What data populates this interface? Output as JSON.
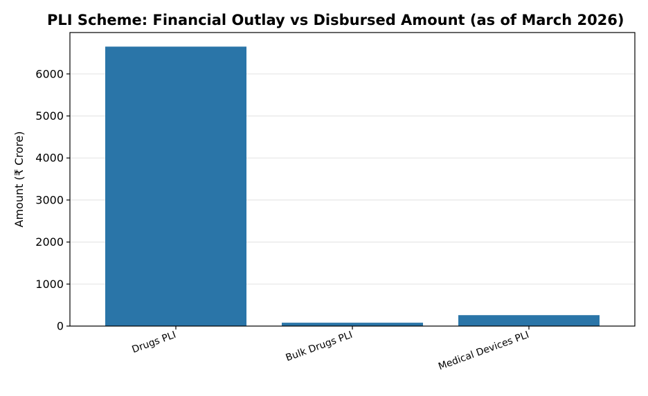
{
  "chart_data": {
    "type": "bar",
    "title": "PLI Scheme: Financial Outlay vs Disbursed Amount (as of March 2026)",
    "xlabel": "",
    "ylabel": "Amount (₹ Crore)",
    "categories": [
      "Drugs PLI",
      "Bulk Drugs PLI",
      "Medical Devices PLI"
    ],
    "values": [
      6650,
      80,
      260
    ],
    "ylim": [
      0,
      6985
    ],
    "yticks": [
      0,
      1000,
      2000,
      3000,
      4000,
      5000,
      6000
    ],
    "grid": "y",
    "bar_color": "#2a75a8"
  }
}
